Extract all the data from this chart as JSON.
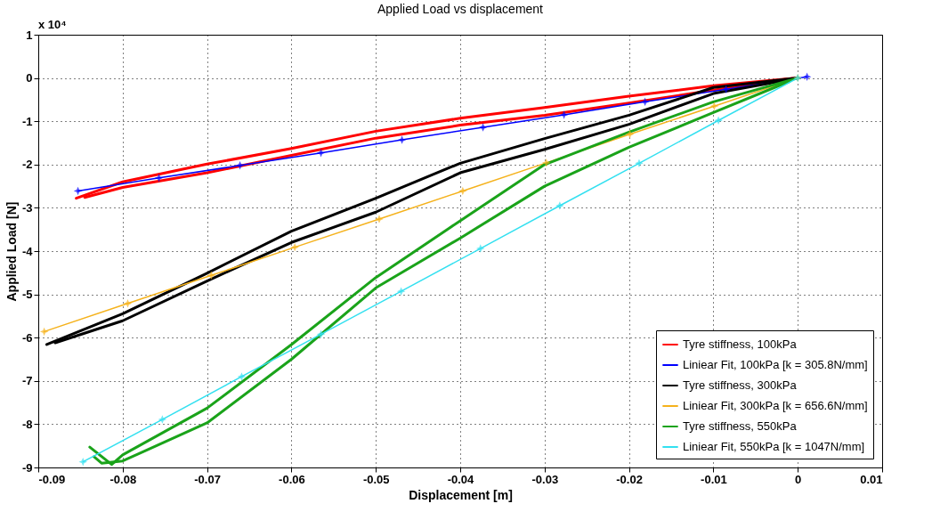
{
  "chart_data": {
    "type": "line",
    "title": "Applied Load vs displacement",
    "xlabel": "Displacement [m]",
    "ylabel": "Applied Load [N]",
    "annotations": [
      "x 10⁴"
    ],
    "xlim": [
      -0.09,
      0.01
    ],
    "xticks": [
      -0.09,
      -0.08,
      -0.07,
      -0.06,
      -0.05,
      -0.04,
      -0.03,
      -0.02,
      -0.01,
      0,
      0.01
    ],
    "ylim": [
      -9,
      1
    ],
    "yticks": [
      -9,
      -8,
      -7,
      -6,
      -5,
      -4,
      -3,
      -2,
      -1,
      0,
      1
    ],
    "grid": true,
    "legend": "bottom right",
    "series": [
      {
        "name": "Tyre stiffness, 100kPa",
        "color": "#ff0000",
        "marker": "none",
        "x": [
          0,
          -0.01,
          -0.02,
          -0.03,
          -0.04,
          -0.05,
          -0.06,
          -0.07,
          -0.08,
          -0.0855
        ],
        "values": [
          0,
          -0.18,
          -0.42,
          -0.68,
          -0.93,
          -1.23,
          -1.63,
          -1.99,
          -2.4,
          -2.78
        ]
      },
      {
        "color": "#ff0000",
        "marker": "none",
        "x": [
          -0.0845,
          -0.08,
          -0.07,
          -0.06,
          -0.05,
          -0.04,
          -0.03,
          -0.02,
          -0.01,
          -0.001
        ],
        "values": [
          -2.76,
          -2.53,
          -2.19,
          -1.79,
          -1.39,
          -1.09,
          -0.86,
          -0.58,
          -0.28,
          -0.02
        ]
      },
      {
        "name": "Liniear Fit, 100kPa [k = 305.8N/mm]",
        "color": "#0000ff",
        "marker": "star",
        "x": [
          0.0011,
          -0.0085,
          -0.0181,
          -0.0277,
          -0.0373,
          -0.0469,
          -0.0565,
          -0.0661,
          -0.0757,
          -0.0853
        ],
        "values": [
          0.03,
          -0.26,
          -0.55,
          -0.85,
          -1.14,
          -1.43,
          -1.73,
          -2.02,
          -2.31,
          -2.61
        ]
      },
      {
        "name": "Tyre stiffness, 300kPa",
        "color": "#000000",
        "marker": "none",
        "x": [
          0,
          -0.01,
          -0.02,
          -0.03,
          -0.04,
          -0.05,
          -0.06,
          -0.07,
          -0.08,
          -0.089
        ],
        "values": [
          0,
          -0.22,
          -0.86,
          -1.4,
          -1.97,
          -2.78,
          -3.54,
          -4.51,
          -5.45,
          -6.16
        ]
      },
      {
        "color": "#000000",
        "marker": "none",
        "x": [
          -0.088,
          -0.08,
          -0.07,
          -0.06,
          -0.05,
          -0.04,
          -0.03,
          -0.02,
          -0.01,
          -0.001
        ],
        "values": [
          -6.12,
          -5.61,
          -4.69,
          -3.8,
          -3.1,
          -2.19,
          -1.65,
          -1.07,
          -0.36,
          -0.04
        ]
      },
      {
        "name": "Liniear Fit, 300kPa [k = 656.6N/mm]",
        "color": "#f5b21c",
        "marker": "star",
        "x": [
          0,
          -0.0099,
          -0.0199,
          -0.0298,
          -0.0397,
          -0.0496,
          -0.0596,
          -0.0695,
          -0.0794,
          -0.0893
        ],
        "values": [
          0,
          -0.65,
          -1.3,
          -1.96,
          -2.61,
          -3.26,
          -3.91,
          -4.56,
          -5.21,
          -5.86
        ]
      },
      {
        "name": "Tyre stiffness, 550kPa",
        "color": "#1aa31a",
        "marker": "none",
        "x": [
          0,
          -0.01,
          -0.02,
          -0.03,
          -0.04,
          -0.05,
          -0.06,
          -0.07,
          -0.08,
          -0.0813,
          -0.0839
        ],
        "values": [
          0,
          -0.55,
          -1.25,
          -2.0,
          -3.3,
          -4.61,
          -6.16,
          -7.63,
          -8.71,
          -8.93,
          -8.53
        ]
      },
      {
        "color": "#1aa31a",
        "marker": "none",
        "x": [
          -0.0834,
          -0.0825,
          -0.08,
          -0.07,
          -0.06,
          -0.05,
          -0.04,
          -0.03,
          -0.02,
          -0.01,
          -0.001
        ],
        "values": [
          -8.75,
          -8.9,
          -8.85,
          -7.97,
          -6.5,
          -4.85,
          -3.7,
          -2.5,
          -1.6,
          -0.8,
          -0.08
        ]
      },
      {
        "name": "Liniear Fit, 550kPa [k = 1047N/mm]",
        "color": "#33e0f0",
        "marker": "star",
        "x": [
          0,
          -0.0094,
          -0.0188,
          -0.0282,
          -0.0376,
          -0.047,
          -0.0565,
          -0.0659,
          -0.0753,
          -0.0847
        ],
        "values": [
          0,
          -0.98,
          -1.97,
          -2.95,
          -3.94,
          -4.93,
          -5.92,
          -6.9,
          -7.89,
          -8.87
        ]
      }
    ]
  }
}
